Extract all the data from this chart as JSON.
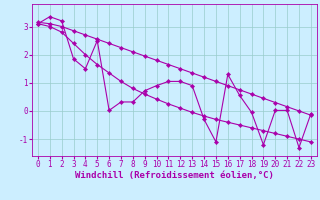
{
  "title": "",
  "xlabel": "Windchill (Refroidissement éolien,°C)",
  "ylabel": "",
  "bg_color": "#cceeff",
  "line_color": "#aa00aa",
  "grid_color": "#99cccc",
  "xlim": [
    -0.5,
    23.5
  ],
  "ylim": [
    -1.6,
    3.8
  ],
  "yticks": [
    -1,
    0,
    1,
    2,
    3
  ],
  "xticks": [
    0,
    1,
    2,
    3,
    4,
    5,
    6,
    7,
    8,
    9,
    10,
    11,
    12,
    13,
    14,
    15,
    16,
    17,
    18,
    19,
    20,
    21,
    22,
    23
  ],
  "x": [
    0,
    1,
    2,
    3,
    4,
    5,
    6,
    7,
    8,
    9,
    10,
    11,
    12,
    13,
    14,
    15,
    16,
    17,
    18,
    19,
    20,
    21,
    22,
    23
  ],
  "y_main": [
    3.1,
    3.35,
    3.2,
    1.85,
    1.5,
    2.5,
    0.02,
    0.32,
    0.32,
    0.72,
    0.9,
    1.05,
    1.05,
    0.9,
    -0.3,
    -1.1,
    1.3,
    0.55,
    -0.05,
    -1.2,
    0.02,
    0.02,
    -1.3,
    -0.1
  ],
  "y_trend_high": [
    3.15,
    3.1,
    3.0,
    2.85,
    2.7,
    2.55,
    2.4,
    2.25,
    2.1,
    1.95,
    1.8,
    1.65,
    1.5,
    1.35,
    1.2,
    1.05,
    0.9,
    0.75,
    0.6,
    0.45,
    0.3,
    0.15,
    0.0,
    -0.15
  ],
  "y_trend_low": [
    3.1,
    3.0,
    2.8,
    2.4,
    2.0,
    1.65,
    1.35,
    1.05,
    0.8,
    0.6,
    0.42,
    0.25,
    0.1,
    -0.05,
    -0.18,
    -0.3,
    -0.4,
    -0.5,
    -0.6,
    -0.7,
    -0.8,
    -0.9,
    -1.0,
    -1.1
  ],
  "marker": "D",
  "markersize": 2.2,
  "linewidth": 0.8,
  "tick_fontsize": 5.5,
  "label_fontsize": 6.5
}
